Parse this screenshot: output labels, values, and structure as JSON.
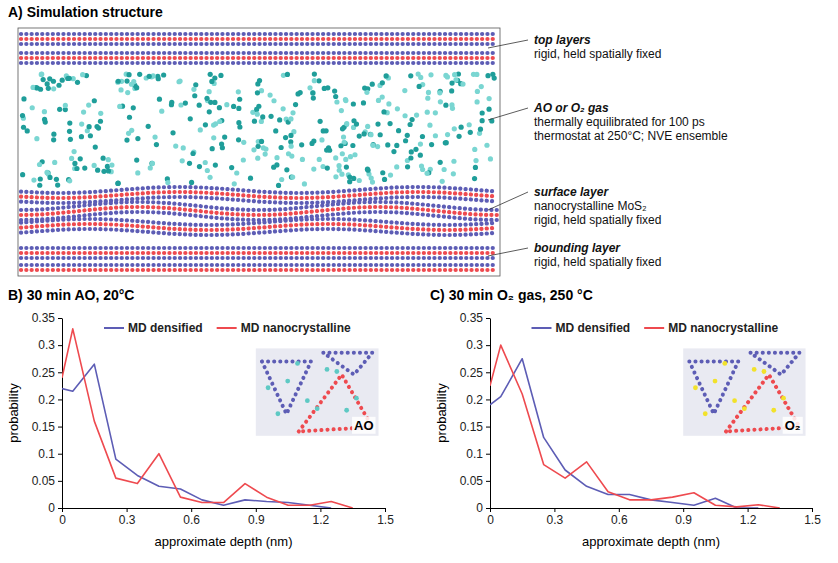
{
  "diagram": {
    "title": "A) Simulation structure",
    "labels": [
      {
        "heading": "top layers",
        "lines": [
          "rigid, held spatially fixed"
        ]
      },
      {
        "heading": "AO or O₂ gas",
        "lines": [
          "thermally equilibrated for 100 ps",
          "thermostat at 250°C; NVE ensemble"
        ]
      },
      {
        "heading": "surface layer",
        "lines": [
          "nanocrystalline MoS₂",
          "rigid, held spatially fixed"
        ]
      },
      {
        "heading": "bounding layer",
        "lines": [
          "rigid, held spatially fixed"
        ]
      }
    ]
  },
  "chart_data": [
    {
      "type": "line",
      "title": "B) 30 min AO, 20°C",
      "x_label": "approximate depth (nm)",
      "y_label": "probability",
      "x": [
        0,
        0.05,
        0.15,
        0.25,
        0.35,
        0.45,
        0.55,
        0.65,
        0.75,
        0.85,
        0.95,
        1.05,
        1.15,
        1.25,
        1.35
      ],
      "series": [
        {
          "name": "MD densified",
          "color": "#5d5db5",
          "values": [
            0.22,
            0.215,
            0.265,
            0.09,
            0.06,
            0.04,
            0.035,
            0.015,
            0.005,
            0.015,
            0.012,
            0.01,
            0.005,
            0,
            null
          ]
        },
        {
          "name": "MD nanocrystalline",
          "color": "#ee4a4f",
          "values": [
            0.24,
            0.33,
            0.16,
            0.055,
            0.045,
            0.1,
            0.02,
            0.01,
            0.01,
            0.045,
            0.02,
            0.005,
            0.005,
            0.012,
            0
          ]
        }
      ],
      "xlim": [
        0,
        1.5
      ],
      "xticks": [
        0,
        0.3,
        0.6,
        0.9,
        1.2,
        1.5
      ],
      "ylim": [
        0,
        0.35
      ],
      "yticks": [
        0,
        0.05,
        0.1,
        0.15,
        0.2,
        0.25,
        0.3,
        0.35
      ],
      "grid": false,
      "legend": "top",
      "annotations": [
        "AO"
      ]
    },
    {
      "type": "line",
      "title": "C) 30 min O₂ gas, 250 °C",
      "x_label": "approximate depth (nm)",
      "y_label": "probability",
      "x": [
        0,
        0.05,
        0.15,
        0.25,
        0.35,
        0.45,
        0.55,
        0.65,
        0.75,
        0.85,
        0.95,
        1.05,
        1.15,
        1.25,
        1.35
      ],
      "series": [
        {
          "name": "MD densified",
          "color": "#5d5db5",
          "values": [
            0.19,
            0.205,
            0.275,
            0.13,
            0.07,
            0.04,
            0.025,
            0.025,
            0.015,
            0.01,
            0.005,
            0.018,
            0,
            0,
            null
          ]
        },
        {
          "name": "MD nanocrystalline",
          "color": "#ee4a4f",
          "values": [
            0.225,
            0.3,
            0.21,
            0.08,
            0.055,
            0.085,
            0.03,
            0.015,
            0.015,
            0.02,
            0.028,
            0.005,
            0.002,
            0.006,
            0
          ]
        }
      ],
      "xlim": [
        0,
        1.5
      ],
      "xticks": [
        0,
        0.3,
        0.6,
        0.9,
        1.2,
        1.5
      ],
      "ylim": [
        0,
        0.35
      ],
      "yticks": [
        0,
        0.05,
        0.1,
        0.15,
        0.2,
        0.25,
        0.3,
        0.35
      ],
      "grid": false,
      "legend": "top",
      "annotations": [
        "O₂"
      ]
    }
  ]
}
